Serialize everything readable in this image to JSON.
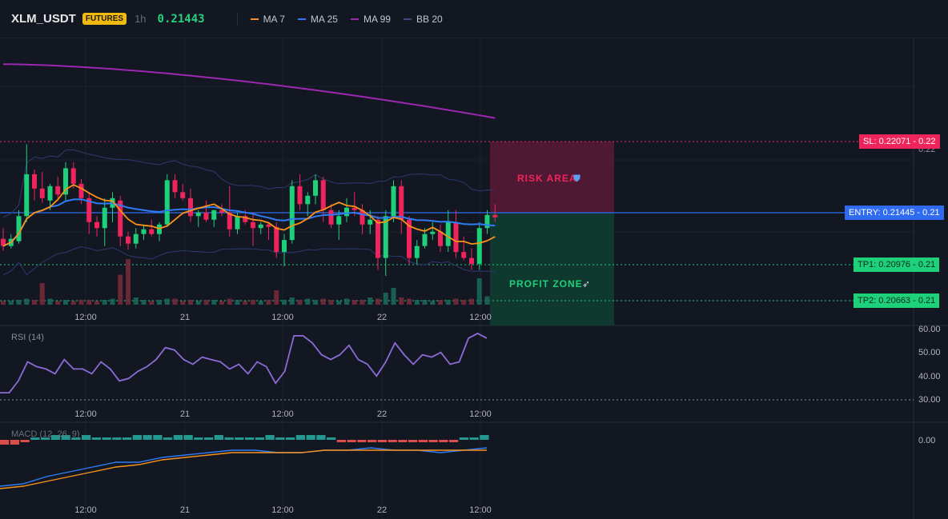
{
  "header": {
    "symbol": "XLM_USDT",
    "badge": "FUTURES",
    "timeframe": "1h",
    "price": "0.21443",
    "legend": [
      {
        "name": "MA 7",
        "color": "#f7931a"
      },
      {
        "name": "MA 25",
        "color": "#2f7bf6"
      },
      {
        "name": "MA 99",
        "color": "#9c27b0"
      },
      {
        "name": "BB 20",
        "color": "#3a4a8f"
      }
    ]
  },
  "levels": {
    "sl": {
      "label": "SL: 0.22071",
      "axis": "0.22",
      "color": "#f0245c"
    },
    "entry": {
      "label": "ENTRY: 0.21445",
      "axis": "0.21",
      "color": "#2f6bf0"
    },
    "tp1": {
      "label": "TP1: 0.20976",
      "axis": "0.21",
      "color": "#1fd07a"
    },
    "tp2": {
      "label": "TP2: 0.20663",
      "axis": "0.21",
      "color": "#1fd07a"
    }
  },
  "zones": {
    "risk": "RISK AREA",
    "profit": "PROFIT ZONE"
  },
  "axes": {
    "time_labels": [
      "12:00",
      "21",
      "12:00",
      "22",
      "12:00"
    ],
    "price_tick": "0.22",
    "rsi_ticks": [
      "60.00",
      "50.00",
      "40.00",
      "30.00"
    ],
    "macd_tick": "0.00"
  },
  "indicators": {
    "rsi": "RSI (14)",
    "macd": "MACD (12, 26, 9)"
  },
  "chart_data": {
    "type": "candlestick",
    "interval": "1h",
    "candles": [
      {
        "o": 0.2126,
        "h": 0.2135,
        "l": 0.2116,
        "c": 0.212
      },
      {
        "o": 0.212,
        "h": 0.213,
        "l": 0.2118,
        "c": 0.2126
      },
      {
        "o": 0.2124,
        "h": 0.215,
        "l": 0.2122,
        "c": 0.2145
      },
      {
        "o": 0.2145,
        "h": 0.2205,
        "l": 0.214,
        "c": 0.218
      },
      {
        "o": 0.218,
        "h": 0.2184,
        "l": 0.2158,
        "c": 0.2168
      },
      {
        "o": 0.2168,
        "h": 0.2182,
        "l": 0.2156,
        "c": 0.216
      },
      {
        "o": 0.2158,
        "h": 0.2172,
        "l": 0.215,
        "c": 0.217
      },
      {
        "o": 0.217,
        "h": 0.2178,
        "l": 0.216,
        "c": 0.2163
      },
      {
        "o": 0.2163,
        "h": 0.219,
        "l": 0.2158,
        "c": 0.2185
      },
      {
        "o": 0.2185,
        "h": 0.219,
        "l": 0.2168,
        "c": 0.2172
      },
      {
        "o": 0.2172,
        "h": 0.2176,
        "l": 0.2155,
        "c": 0.216
      },
      {
        "o": 0.216,
        "h": 0.2165,
        "l": 0.213,
        "c": 0.214
      },
      {
        "o": 0.214,
        "h": 0.2145,
        "l": 0.2128,
        "c": 0.2135
      },
      {
        "o": 0.2135,
        "h": 0.216,
        "l": 0.212,
        "c": 0.2152
      },
      {
        "o": 0.2152,
        "h": 0.2165,
        "l": 0.214,
        "c": 0.216
      },
      {
        "o": 0.2158,
        "h": 0.2162,
        "l": 0.212,
        "c": 0.2128
      },
      {
        "o": 0.2128,
        "h": 0.2132,
        "l": 0.2117,
        "c": 0.2122
      },
      {
        "o": 0.2122,
        "h": 0.2135,
        "l": 0.2118,
        "c": 0.213
      },
      {
        "o": 0.213,
        "h": 0.2138,
        "l": 0.2125,
        "c": 0.2134
      },
      {
        "o": 0.2134,
        "h": 0.2142,
        "l": 0.2128,
        "c": 0.213
      },
      {
        "o": 0.213,
        "h": 0.214,
        "l": 0.2124,
        "c": 0.2138
      },
      {
        "o": 0.2138,
        "h": 0.218,
        "l": 0.2136,
        "c": 0.2175
      },
      {
        "o": 0.2175,
        "h": 0.218,
        "l": 0.216,
        "c": 0.2165
      },
      {
        "o": 0.2165,
        "h": 0.2172,
        "l": 0.2158,
        "c": 0.216
      },
      {
        "o": 0.216,
        "h": 0.2168,
        "l": 0.214,
        "c": 0.2145
      },
      {
        "o": 0.2145,
        "h": 0.215,
        "l": 0.2136,
        "c": 0.2148
      },
      {
        "o": 0.2148,
        "h": 0.2158,
        "l": 0.214,
        "c": 0.2142
      },
      {
        "o": 0.2142,
        "h": 0.215,
        "l": 0.2136,
        "c": 0.215
      },
      {
        "o": 0.215,
        "h": 0.2155,
        "l": 0.2145,
        "c": 0.2148
      },
      {
        "o": 0.2148,
        "h": 0.217,
        "l": 0.2128,
        "c": 0.2134
      },
      {
        "o": 0.2134,
        "h": 0.2148,
        "l": 0.213,
        "c": 0.2145
      },
      {
        "o": 0.2145,
        "h": 0.215,
        "l": 0.2138,
        "c": 0.214
      },
      {
        "o": 0.214,
        "h": 0.2148,
        "l": 0.212,
        "c": 0.2135
      },
      {
        "o": 0.2135,
        "h": 0.214,
        "l": 0.213,
        "c": 0.2138
      },
      {
        "o": 0.2138,
        "h": 0.214,
        "l": 0.2125,
        "c": 0.2136
      },
      {
        "o": 0.2136,
        "h": 0.214,
        "l": 0.211,
        "c": 0.2115
      },
      {
        "o": 0.2115,
        "h": 0.213,
        "l": 0.2103,
        "c": 0.2125
      },
      {
        "o": 0.2125,
        "h": 0.2175,
        "l": 0.2122,
        "c": 0.217
      },
      {
        "o": 0.217,
        "h": 0.218,
        "l": 0.215,
        "c": 0.2155
      },
      {
        "o": 0.2155,
        "h": 0.2165,
        "l": 0.2145,
        "c": 0.2162
      },
      {
        "o": 0.2162,
        "h": 0.218,
        "l": 0.2155,
        "c": 0.2175
      },
      {
        "o": 0.2175,
        "h": 0.2178,
        "l": 0.214,
        "c": 0.215
      },
      {
        "o": 0.215,
        "h": 0.2155,
        "l": 0.2135,
        "c": 0.2138
      },
      {
        "o": 0.2138,
        "h": 0.215,
        "l": 0.2125,
        "c": 0.2145
      },
      {
        "o": 0.2145,
        "h": 0.216,
        "l": 0.214,
        "c": 0.2152
      },
      {
        "o": 0.2152,
        "h": 0.2165,
        "l": 0.2145,
        "c": 0.215
      },
      {
        "o": 0.215,
        "h": 0.2155,
        "l": 0.213,
        "c": 0.2138
      },
      {
        "o": 0.2138,
        "h": 0.215,
        "l": 0.213,
        "c": 0.2142
      },
      {
        "o": 0.2142,
        "h": 0.2145,
        "l": 0.21,
        "c": 0.211
      },
      {
        "o": 0.211,
        "h": 0.215,
        "l": 0.2095,
        "c": 0.2145
      },
      {
        "o": 0.2145,
        "h": 0.2175,
        "l": 0.214,
        "c": 0.217
      },
      {
        "o": 0.217,
        "h": 0.2175,
        "l": 0.213,
        "c": 0.2142
      },
      {
        "o": 0.2142,
        "h": 0.2145,
        "l": 0.2105,
        "c": 0.211
      },
      {
        "o": 0.211,
        "h": 0.2125,
        "l": 0.2105,
        "c": 0.212
      },
      {
        "o": 0.212,
        "h": 0.2135,
        "l": 0.2118,
        "c": 0.213
      },
      {
        "o": 0.213,
        "h": 0.214,
        "l": 0.2125,
        "c": 0.2132
      },
      {
        "o": 0.2132,
        "h": 0.2138,
        "l": 0.2115,
        "c": 0.212
      },
      {
        "o": 0.212,
        "h": 0.215,
        "l": 0.2115,
        "c": 0.214
      },
      {
        "o": 0.214,
        "h": 0.215,
        "l": 0.211,
        "c": 0.2115
      },
      {
        "o": 0.2115,
        "h": 0.2128,
        "l": 0.2108,
        "c": 0.211
      },
      {
        "o": 0.211,
        "h": 0.2118,
        "l": 0.21,
        "c": 0.2105
      },
      {
        "o": 0.2105,
        "h": 0.214,
        "l": 0.21,
        "c": 0.2135
      },
      {
        "o": 0.2135,
        "h": 0.215,
        "l": 0.213,
        "c": 0.2146
      },
      {
        "o": 0.2146,
        "h": 0.2155,
        "l": 0.214,
        "c": 0.2144
      }
    ],
    "volume": [
      3,
      3,
      4,
      5,
      4,
      18,
      5,
      3,
      4,
      3,
      4,
      4,
      3,
      4,
      5,
      25,
      38,
      6,
      4,
      3,
      4,
      5,
      5,
      3,
      4,
      3,
      4,
      4,
      3,
      5,
      4,
      3,
      4,
      3,
      4,
      12,
      4,
      6,
      4,
      5,
      4,
      5,
      4,
      3,
      5,
      4,
      4,
      6,
      5,
      10,
      14,
      6,
      5,
      4,
      4,
      3,
      4,
      4,
      5,
      4,
      5,
      22,
      7
    ],
    "rsi": [
      33,
      33,
      38,
      46,
      44,
      43,
      41,
      47,
      43,
      43,
      41,
      46,
      43,
      38,
      39,
      42,
      44,
      47,
      52,
      51,
      47,
      45,
      48,
      47,
      46,
      43,
      45,
      41,
      46,
      44,
      37,
      42,
      57,
      57,
      54,
      49,
      47,
      49,
      53,
      47,
      45,
      40,
      46,
      54,
      49,
      45,
      49,
      48,
      50,
      45,
      46,
      56,
      58,
      56
    ],
    "macd_hist": [
      -2,
      -2,
      -1,
      1,
      1,
      2,
      2,
      1,
      2,
      1,
      1,
      1,
      1,
      2,
      2,
      2,
      1,
      2,
      2,
      1,
      1,
      2,
      1,
      1,
      1,
      1,
      2,
      1,
      1,
      2,
      2,
      2,
      1,
      -1,
      -1,
      -1,
      -1,
      -1,
      -1,
      -1,
      -1,
      -1,
      -1,
      -1,
      -1,
      1,
      1,
      2
    ],
    "macd_line": [
      -16,
      -15,
      -12,
      -10,
      -8,
      -6,
      -6,
      -4,
      -3,
      -2,
      -1,
      -1,
      -2,
      -2,
      -1,
      -1,
      0,
      -1,
      -1,
      -2,
      -1,
      0
    ],
    "signal_line": [
      -17,
      -16,
      -14,
      -12,
      -10,
      -8,
      -7,
      -5,
      -4,
      -3,
      -2,
      -2,
      -2,
      -2,
      -1,
      -1,
      -1,
      -1,
      -1,
      -1,
      -1,
      -1
    ]
  }
}
